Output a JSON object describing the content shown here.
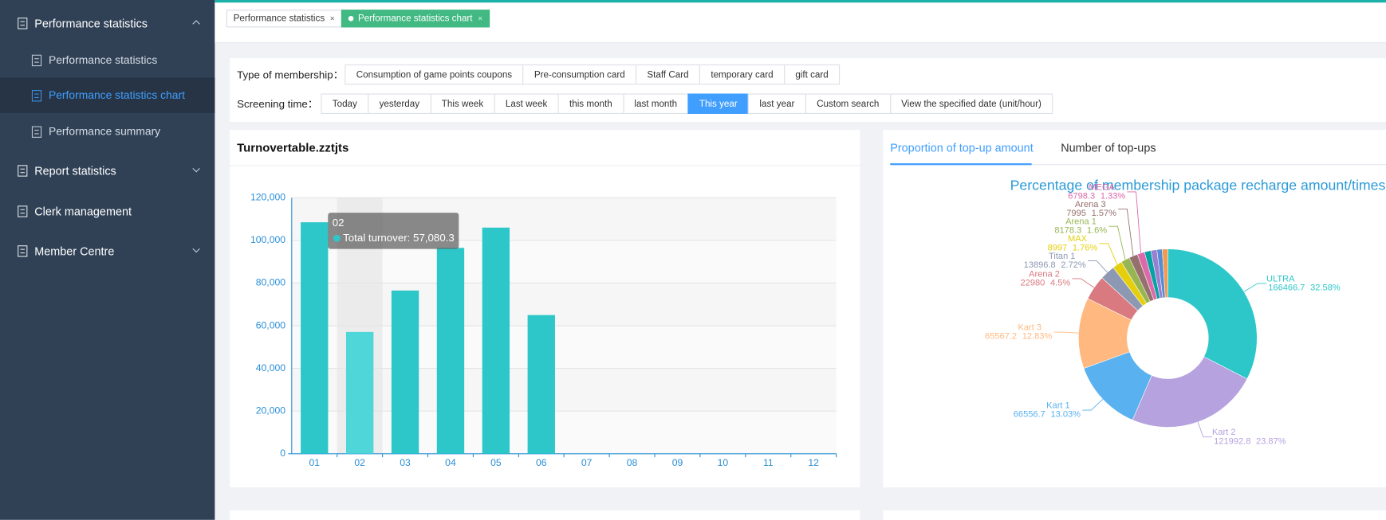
{
  "sidebar": [
    {
      "label": "Performance statistics",
      "children": [
        "Performance statistics",
        "Performance statistics chart",
        "Performance summary"
      ]
    },
    {
      "label": "Report statistics"
    },
    {
      "label": "Clerk management"
    },
    {
      "label": "Member Centre"
    }
  ],
  "tabs": [
    "Performance statistics",
    "Performance statistics chart"
  ],
  "tab_close": "×",
  "filters": {
    "membership": {
      "label": "Type of membership：",
      "options": [
        "Consumption of game points coupons",
        "Pre-consumption card",
        "Staff Card",
        "temporary card",
        "gift card"
      ]
    },
    "screening_time": {
      "label": "Screening time：",
      "options": [
        "Today",
        "yesterday",
        "This week",
        "Last week",
        "this month",
        "last month",
        "This year",
        "last year",
        "Custom search",
        "View the specified date (unit/hour)"
      ]
    }
  },
  "chart_data": [
    {
      "type": "bar",
      "title": "Turnovertable.zztjts",
      "categories": [
        "01",
        "02",
        "03",
        "04",
        "05",
        "06",
        "07",
        "08",
        "09",
        "10",
        "11",
        "12"
      ],
      "values": [
        108500,
        57080.3,
        76500,
        96500,
        106000,
        65000,
        null,
        null,
        null,
        null,
        null,
        null
      ],
      "color": "#2ec7c9",
      "ylim": [
        0,
        120000
      ],
      "yticks": [
        0,
        {
          "value": 20000,
          "label": "20,000"
        },
        {
          "value": 40000,
          "label": "40,000"
        },
        {
          "value": 60000,
          "label": "60,000"
        },
        {
          "value": 80000,
          "label": "80,000"
        },
        {
          "value": 100000,
          "label": "100,000"
        },
        {
          "value": 120000,
          "label": "120,000"
        }
      ],
      "grid": true,
      "tooltip": {
        "title": "02",
        "label": "Total turnover: 57,080.3"
      }
    },
    {
      "type": "pie",
      "title": "Percentage of membership package recharge amount/times",
      "tabs": [
        "Proportion of top-up amount",
        "Number of top-ups"
      ],
      "categories": [
        "ULTRA",
        "Kart 2",
        "Kart 1",
        "Kart 3",
        "Arena 2",
        "Titan 1",
        "MAX",
        "Arena 1",
        "Arena 3",
        "MEGA",
        null,
        null,
        null,
        null
      ],
      "values": [
        166466.7,
        121992.8,
        66556.7,
        65567.2,
        22980,
        13896.8,
        8997,
        8178.3,
        7995,
        6798.3,
        6000,
        5500,
        5000,
        5000
      ],
      "percent_labels": [
        "32.58%",
        "23.87%",
        "13.03%",
        "12.83%",
        "4.5%",
        "2.72%",
        "1.76%",
        "1.6%",
        "1.57%",
        "1.33%",
        null,
        null,
        null,
        null
      ],
      "colors": [
        "#2ec7c9",
        "#b6a2de",
        "#5ab1ef",
        "#ffb980",
        "#d87a80",
        "#8d98b3",
        "#e5cf0d",
        "#97b552",
        "#95706d",
        "#dc69aa",
        "#07a2a4",
        "#9a7fd1",
        "#588dd5",
        "#f5994e"
      ]
    }
  ]
}
